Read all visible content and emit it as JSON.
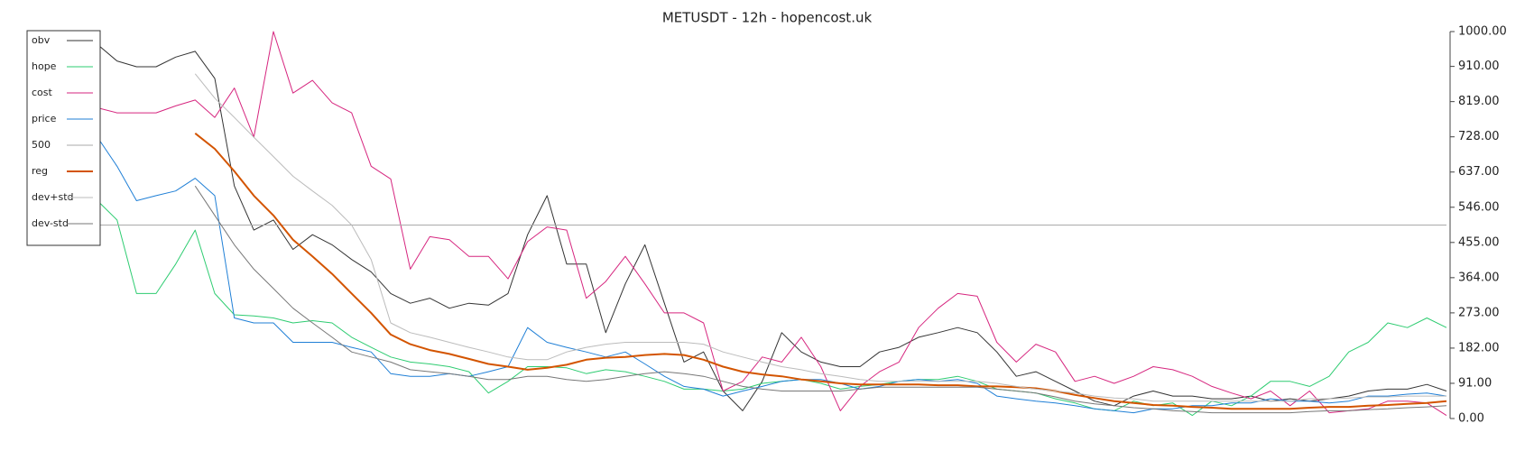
{
  "chart_data": {
    "type": "line",
    "title": "METUSDT - 12h - hopencost.uk",
    "ylim": [
      0,
      1000
    ],
    "yticks": [
      {
        "value": 0,
        "label": "0.00"
      },
      {
        "value": 91,
        "label": "91.00"
      },
      {
        "value": 182,
        "label": "182.00"
      },
      {
        "value": 273,
        "label": "273.00"
      },
      {
        "value": 364,
        "label": "364.00"
      },
      {
        "value": 455,
        "label": "455.00"
      },
      {
        "value": 546,
        "label": "546.00"
      },
      {
        "value": 637,
        "label": "637.00"
      },
      {
        "value": 728,
        "label": "728.00"
      },
      {
        "value": 819,
        "label": "819.00"
      },
      {
        "value": 910,
        "label": "910.00"
      },
      {
        "value": 1000,
        "label": "1000.00"
      }
    ],
    "legend": "upper left",
    "series": [
      {
        "name": "obv",
        "color": "#333333",
        "width": 1,
        "values": [
          967,
          924,
          909,
          909,
          934,
          949,
          879,
          601,
          487,
          513,
          437,
          475,
          449,
          411,
          379,
          323,
          298,
          311,
          285,
          298,
          293,
          323,
          475,
          576,
          399,
          399,
          222,
          348,
          449,
          298,
          146,
          172,
          71,
          20,
          96,
          222,
          172,
          146,
          134,
          134,
          172,
          184,
          210,
          222,
          235,
          222,
          172,
          109,
          121,
          96,
          71,
          45,
          33,
          58,
          71,
          58,
          58,
          51,
          51,
          58,
          45,
          51,
          45,
          51,
          58,
          71,
          76,
          76,
          88,
          71
        ]
      },
      {
        "name": "hope",
        "color": "#2ecc71",
        "width": 1,
        "values": [
          563,
          513,
          323,
          323,
          399,
          487,
          323,
          268,
          265,
          260,
          247,
          253,
          247,
          210,
          184,
          159,
          146,
          141,
          134,
          121,
          66,
          96,
          134,
          134,
          131,
          116,
          126,
          121,
          109,
          96,
          76,
          76,
          71,
          76,
          91,
          96,
          101,
          91,
          76,
          83,
          88,
          96,
          101,
          101,
          109,
          96,
          76,
          71,
          66,
          51,
          40,
          25,
          20,
          45,
          33,
          40,
          8,
          45,
          33,
          58,
          96,
          96,
          83,
          109,
          172,
          197,
          247,
          235,
          260,
          235
        ]
      },
      {
        "name": "cost",
        "color": "#d6267f",
        "width": 1,
        "values": [
          803,
          790,
          790,
          790,
          808,
          823,
          778,
          854,
          727,
          1000,
          841,
          874,
          816,
          790,
          652,
          619,
          386,
          470,
          462,
          419,
          419,
          361,
          457,
          495,
          487,
          311,
          354,
          419,
          348,
          273,
          273,
          247,
          71,
          96,
          159,
          146,
          210,
          134,
          20,
          83,
          121,
          146,
          235,
          285,
          323,
          316,
          197,
          146,
          192,
          172,
          96,
          109,
          91,
          109,
          134,
          126,
          109,
          83,
          66,
          51,
          71,
          33,
          71,
          15,
          20,
          25,
          45,
          45,
          40,
          8
        ]
      },
      {
        "name": "price",
        "color": "#1f7fd6",
        "width": 1,
        "values": [
          727,
          652,
          563,
          576,
          588,
          621,
          576,
          260,
          247,
          247,
          197,
          197,
          197,
          184,
          172,
          116,
          109,
          109,
          116,
          109,
          121,
          134,
          235,
          197,
          184,
          172,
          159,
          172,
          141,
          109,
          83,
          76,
          58,
          71,
          83,
          96,
          101,
          101,
          91,
          76,
          83,
          96,
          101,
          96,
          101,
          91,
          58,
          51,
          45,
          40,
          33,
          25,
          20,
          15,
          25,
          25,
          33,
          33,
          40,
          40,
          51,
          45,
          45,
          40,
          45,
          58,
          58,
          63,
          66,
          58
        ]
      },
      {
        "name": "500",
        "color": "#aaaaaa",
        "width": 1,
        "values": [
          500,
          500,
          500,
          500,
          500,
          500,
          500,
          500,
          500,
          500,
          500,
          500,
          500,
          500,
          500,
          500,
          500,
          500,
          500,
          500,
          500,
          500,
          500,
          500,
          500,
          500,
          500,
          500,
          500,
          500,
          500,
          500,
          500,
          500,
          500,
          500,
          500,
          500,
          500,
          500,
          500,
          500,
          500,
          500,
          500,
          500,
          500,
          500,
          500,
          500,
          500,
          500,
          500,
          500,
          500,
          500,
          500,
          500,
          500,
          500,
          500,
          500,
          500,
          500,
          500,
          500,
          500,
          500,
          500,
          500
        ]
      },
      {
        "name": "reg",
        "color": "#d35400",
        "width": 2,
        "values": [
          null,
          null,
          null,
          null,
          null,
          737,
          697,
          639,
          576,
          525,
          462,
          419,
          374,
          323,
          273,
          217,
          192,
          177,
          167,
          154,
          141,
          134,
          126,
          131,
          139,
          152,
          157,
          159,
          164,
          167,
          164,
          152,
          134,
          121,
          114,
          109,
          101,
          96,
          91,
          88,
          88,
          88,
          88,
          86,
          86,
          83,
          83,
          81,
          78,
          71,
          61,
          53,
          45,
          40,
          35,
          33,
          30,
          28,
          25,
          25,
          25,
          25,
          28,
          30,
          30,
          33,
          35,
          38,
          40,
          45
        ]
      },
      {
        "name": "dev+std",
        "color": "#bbbbbb",
        "width": 1,
        "values": [
          null,
          null,
          null,
          null,
          null,
          891,
          828,
          778,
          727,
          677,
          626,
          588,
          551,
          500,
          411,
          247,
          222,
          210,
          197,
          184,
          172,
          159,
          152,
          152,
          172,
          184,
          192,
          197,
          197,
          197,
          197,
          192,
          172,
          159,
          146,
          134,
          126,
          116,
          109,
          101,
          96,
          96,
          96,
          96,
          96,
          96,
          91,
          83,
          76,
          71,
          66,
          58,
          53,
          51,
          45,
          45,
          45,
          45,
          45,
          45,
          45,
          45,
          51,
          51,
          53,
          56,
          56,
          58,
          58,
          58
        ]
      },
      {
        "name": "dev-std",
        "color": "#777777",
        "width": 1,
        "values": [
          null,
          null,
          null,
          null,
          null,
          601,
          525,
          449,
          386,
          336,
          285,
          247,
          210,
          172,
          159,
          146,
          126,
          121,
          116,
          109,
          101,
          101,
          109,
          109,
          101,
          96,
          101,
          109,
          116,
          121,
          116,
          109,
          96,
          83,
          76,
          71,
          71,
          71,
          71,
          76,
          81,
          81,
          81,
          81,
          81,
          81,
          76,
          71,
          66,
          56,
          45,
          38,
          33,
          28,
          25,
          20,
          18,
          15,
          15,
          15,
          15,
          15,
          18,
          20,
          20,
          23,
          25,
          28,
          30,
          33
        ]
      }
    ]
  }
}
